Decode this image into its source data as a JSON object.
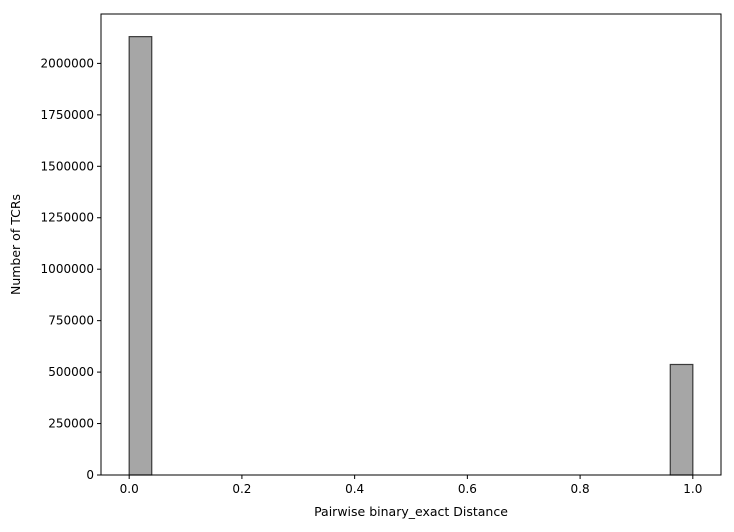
{
  "chart_data": {
    "type": "bar",
    "title": "",
    "xlabel": "Pairwise binary_exact Distance",
    "ylabel": "Number of TCRs",
    "xlim": [
      -0.05,
      1.05
    ],
    "ylim": [
      0,
      2240000
    ],
    "xticks": [
      0.0,
      0.2,
      0.4,
      0.6,
      0.8,
      1.0
    ],
    "xtick_labels": [
      "0.0",
      "0.2",
      "0.4",
      "0.6",
      "0.8",
      "1.0"
    ],
    "yticks": [
      0,
      250000,
      500000,
      750000,
      1000000,
      1250000,
      1500000,
      1750000,
      2000000
    ],
    "ytick_labels": [
      "0",
      "250000",
      "500000",
      "750000",
      "1000000",
      "1250000",
      "1500000",
      "1750000",
      "2000000"
    ],
    "bins": [
      {
        "x0": 0.0,
        "x1": 0.04,
        "value": 2130000
      },
      {
        "x0": 0.96,
        "x1": 1.0,
        "value": 537000
      }
    ],
    "grid": false,
    "legend": "none",
    "colors": {
      "bar_fill": "#a6a6a6",
      "bar_edge": "#3a3a3a",
      "axis": "#000000",
      "background": "#ffffff"
    }
  }
}
